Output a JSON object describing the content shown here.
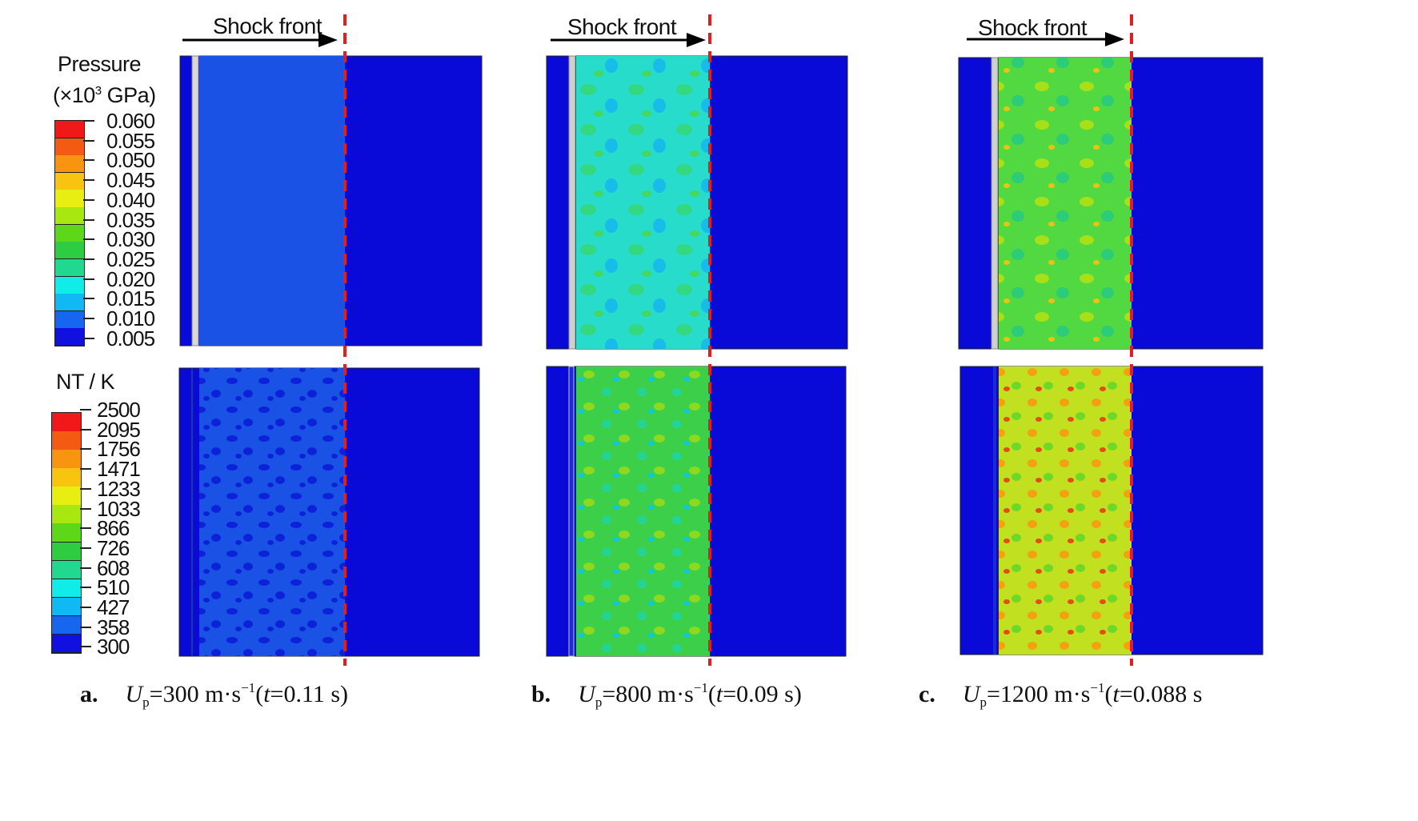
{
  "pressure_legend": {
    "title_line1": "Pressure",
    "title_line2_prefix": "(×10",
    "title_line2_exp": "3",
    "title_line2_suffix": " GPa)",
    "ticks": [
      "0.060",
      "0.055",
      "0.050",
      "0.045",
      "0.040",
      "0.035",
      "0.030",
      "0.025",
      "0.020",
      "0.015",
      "0.010",
      "0.005"
    ],
    "colors": [
      "#f01818",
      "#f45a12",
      "#f89410",
      "#f8c410",
      "#e8ee10",
      "#a8e810",
      "#5cd818",
      "#2ecc40",
      "#20d890",
      "#10ece8",
      "#10b8f4",
      "#1666f0",
      "#1010e0"
    ]
  },
  "temperature_legend": {
    "title": "NT / K",
    "ticks": [
      "2500",
      "2095",
      "1756",
      "1471",
      "1233",
      "1033",
      "866",
      "726",
      "608",
      "510",
      "427",
      "358",
      "300"
    ],
    "colors": [
      "#f01818",
      "#f45a12",
      "#f89410",
      "#f8c410",
      "#e8ee10",
      "#a8e810",
      "#5cd818",
      "#2ecc40",
      "#20d890",
      "#10ece8",
      "#10b8f4",
      "#1666f0",
      "#1010e0"
    ]
  },
  "shock_label": "Shock front",
  "panels": [
    {
      "id": "a",
      "caption_letter": "a.",
      "up_symbol": "U",
      "up_sub": "p",
      "up_value": "=300 m·s",
      "up_exp": "−1",
      "time_open": "(",
      "time_symbol": "t",
      "time_value": "=0.11 s)",
      "pressure_fill": "#1a52e6",
      "temperature_fill": "#1a52e6"
    },
    {
      "id": "b",
      "caption_letter": "b.",
      "up_symbol": "U",
      "up_sub": "p",
      "up_value": "=800 m·s",
      "up_exp": "−1",
      "time_open": "(",
      "time_symbol": "t",
      "time_value": "=0.09 s)",
      "pressure_fill": "#28dccc",
      "temperature_fill": "#3ccf4a"
    },
    {
      "id": "c",
      "caption_letter": "c.",
      "up_symbol": "U",
      "up_sub": "p",
      "up_value": "=1200 m·s",
      "up_exp": "−1",
      "time_open": "(",
      "time_symbol": "t",
      "time_value": "=0.088 s",
      "pressure_fill": "#52d840",
      "temperature_fill": "#c0e020"
    }
  ],
  "colors": {
    "background_blue": "#0a0ad8",
    "shock_line": "#e02020",
    "arrow": "#000000"
  }
}
